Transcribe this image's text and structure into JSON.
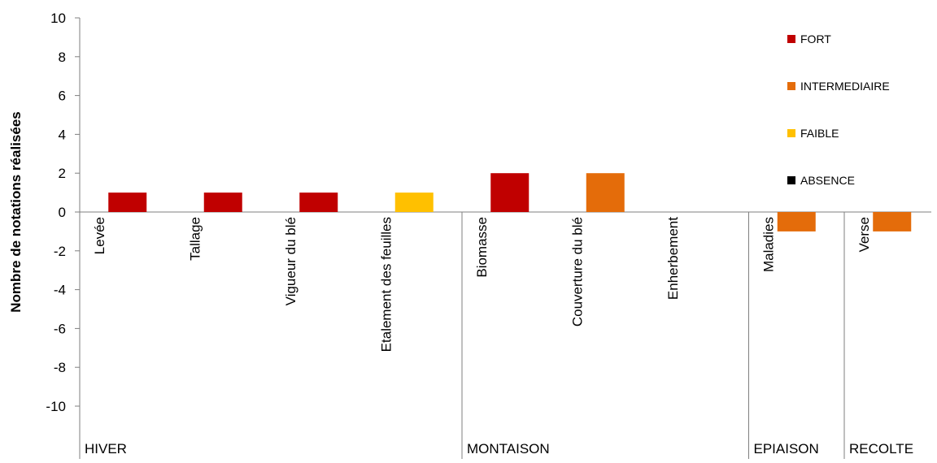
{
  "chart_data": {
    "type": "bar",
    "title": "",
    "ylabel": "Nombre de notations réalisées",
    "xlabel": "",
    "ylim": [
      -10,
      10
    ],
    "yticks": [
      10,
      8,
      6,
      4,
      2,
      0,
      -2,
      -4,
      -6,
      -8,
      -10
    ],
    "grid": false,
    "legend_position": "right",
    "colors": {
      "FORT": "#c00000",
      "INTERMEDIAIRE": "#e46c0a",
      "FAIBLE": "#ffc000",
      "ABSENCE": "#000000",
      "axis": "#7f7f7f"
    },
    "legend": [
      "FORT",
      "INTERMEDIAIRE",
      "FAIBLE",
      "ABSENCE"
    ],
    "categories": [
      "Levée",
      "Tallage",
      "Vigueur du blé",
      "Etalement des feuilles",
      "Biomasse",
      "Couverture du blé",
      "Enherbement",
      "Maladies",
      "Verse"
    ],
    "bars": [
      {
        "category": "Levée",
        "value": 1,
        "level": "FORT"
      },
      {
        "category": "Tallage",
        "value": 1,
        "level": "FORT"
      },
      {
        "category": "Vigueur du blé",
        "value": 1,
        "level": "FORT"
      },
      {
        "category": "Etalement des feuilles",
        "value": 1,
        "level": "FAIBLE"
      },
      {
        "category": "Biomasse",
        "value": 2,
        "level": "FORT"
      },
      {
        "category": "Couverture du blé",
        "value": 2,
        "level": "INTERMEDIAIRE"
      },
      {
        "category": "Enherbement",
        "value": 0,
        "level": "ABSENCE"
      },
      {
        "category": "Maladies",
        "value": -1,
        "level": "INTERMEDIAIRE"
      },
      {
        "category": "Verse",
        "value": -1,
        "level": "INTERMEDIAIRE"
      }
    ],
    "groups": [
      {
        "label": "HIVER",
        "categories": [
          "Levée",
          "Tallage",
          "Vigueur du blé",
          "Etalement des feuilles"
        ]
      },
      {
        "label": "MONTAISON",
        "categories": [
          "Biomasse",
          "Couverture du blé",
          "Enherbement"
        ]
      },
      {
        "label": "EPIAISON",
        "categories": [
          "Maladies"
        ]
      },
      {
        "label": "RECOLTE",
        "categories": [
          "Verse"
        ]
      }
    ]
  }
}
